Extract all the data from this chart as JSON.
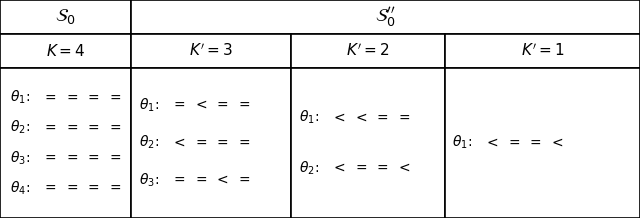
{
  "col_bounds": [
    0.0,
    0.205,
    0.455,
    0.695,
    1.0
  ],
  "row_bounds": [
    1.0,
    0.845,
    0.69,
    0.0
  ],
  "header1_texts": [
    "$\\mathcal{S}_0$",
    "$\\mathcal{S}_0^{\\prime\\prime}$"
  ],
  "header2_texts": [
    "$K = 4$",
    "$K^{\\prime} = 3$",
    "$K^{\\prime} = 2$",
    "$K^{\\prime} = 1$"
  ],
  "cell0_lines": [
    [
      "$\\theta_1$:",
      "$=$ $=$ $=$ $=$"
    ],
    [
      "$\\theta_2$:",
      "$=$ $=$ $=$ $=$"
    ],
    [
      "$\\theta_3$:",
      "$=$ $=$ $=$ $=$"
    ],
    [
      "$\\theta_4$:",
      "$=$ $=$ $=$ $=$"
    ]
  ],
  "cell1_lines": [
    [
      "$\\theta_1$:",
      "$=$ $<$ $=$ $=$"
    ],
    [
      "$\\theta_2$:",
      "$<$ $=$ $=$ $=$"
    ],
    [
      "$\\theta_3$:",
      "$=$ $=$ $<$ $=$"
    ]
  ],
  "cell2_lines": [
    [
      "$\\theta_1$:",
      "$<$ $<$ $=$ $=$"
    ],
    [
      "$\\theta_2$:",
      "$<$ $=$ $=$ $<$"
    ]
  ],
  "cell3_lines": [
    [
      "$\\theta_1$:",
      "$<$ $=$ $=$ $<$"
    ]
  ],
  "lw": 1.2,
  "font_size_header1": 13,
  "font_size_header2": 11,
  "font_size_data": 10
}
